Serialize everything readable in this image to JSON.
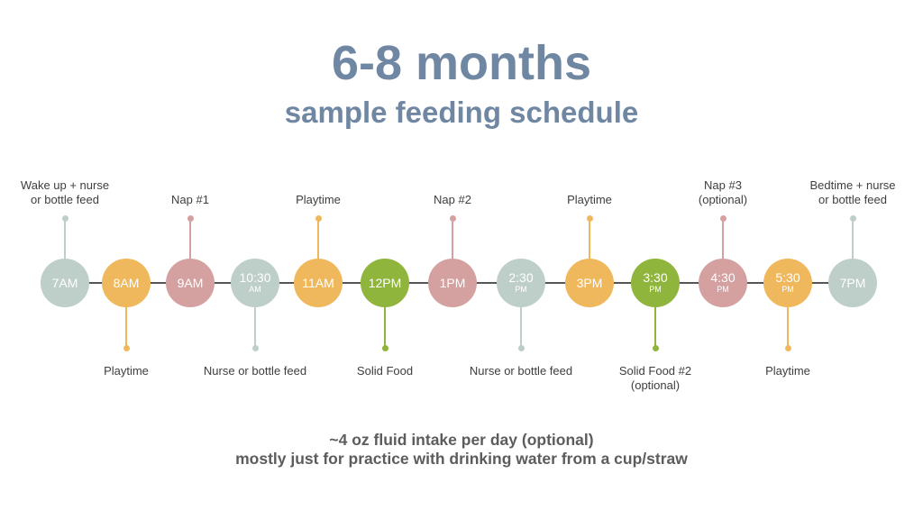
{
  "header": {
    "title": "6-8 months",
    "subtitle": "sample feeding schedule"
  },
  "colors": {
    "sage": "#bdcfc8",
    "orange": "#f0b85c",
    "rose": "#d4a0a0",
    "green": "#8fb53c",
    "title": "#6f87a2",
    "line": "#555555"
  },
  "timeline": [
    {
      "time": "7AM",
      "ampm": "",
      "color": "sage",
      "label": "Wake up + nurse or bottle feed",
      "position": "above"
    },
    {
      "time": "8AM",
      "ampm": "",
      "color": "orange",
      "label": "Playtime",
      "position": "below"
    },
    {
      "time": "9AM",
      "ampm": "",
      "color": "rose",
      "label": "Nap #1",
      "position": "above"
    },
    {
      "time": "10:30",
      "ampm": "AM",
      "color": "sage",
      "label": "Nurse or bottle feed",
      "position": "below"
    },
    {
      "time": "11AM",
      "ampm": "",
      "color": "orange",
      "label": "Playtime",
      "position": "above"
    },
    {
      "time": "12PM",
      "ampm": "",
      "color": "green",
      "label": "Solid Food",
      "position": "below"
    },
    {
      "time": "1PM",
      "ampm": "",
      "color": "rose",
      "label": "Nap #2",
      "position": "above"
    },
    {
      "time": "2:30",
      "ampm": "PM",
      "color": "sage",
      "label": "Nurse or bottle feed",
      "position": "below"
    },
    {
      "time": "3PM",
      "ampm": "",
      "color": "orange",
      "label": "Playtime",
      "position": "above"
    },
    {
      "time": "3:30",
      "ampm": "PM",
      "color": "green",
      "label": "Solid Food #2 (optional)",
      "position": "below"
    },
    {
      "time": "4:30",
      "ampm": "PM",
      "color": "rose",
      "label": "Nap #3 (optional)",
      "position": "above"
    },
    {
      "time": "5:30",
      "ampm": "PM",
      "color": "orange",
      "label": "Playtime",
      "position": "below"
    },
    {
      "time": "7PM",
      "ampm": "",
      "color": "sage",
      "label": "Bedtime + nurse or bottle feed",
      "position": "above"
    }
  ],
  "footer": {
    "line1": "~4 oz fluid intake per day (optional)",
    "line2": "mostly just for practice with drinking water from a cup/straw"
  }
}
